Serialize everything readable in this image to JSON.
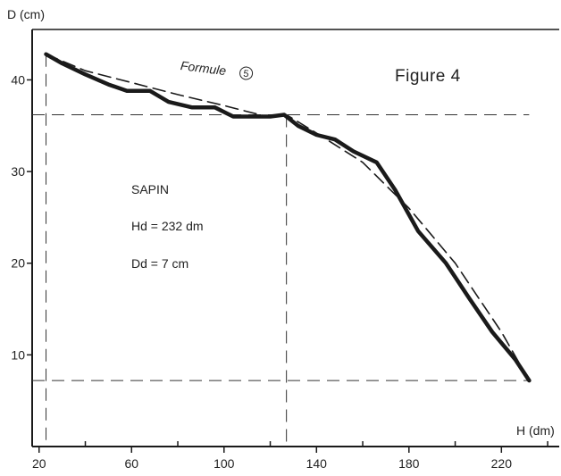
{
  "chart_data": {
    "type": "line",
    "title": "Figure 4",
    "xlabel": "H (dm)",
    "ylabel": "D (cm)",
    "xlim": [
      17,
      245
    ],
    "ylim": [
      0,
      45.5
    ],
    "x_ticks": [
      20,
      60,
      100,
      140,
      180,
      220
    ],
    "x_minor_ticks": [
      40,
      80,
      120,
      160,
      200,
      240
    ],
    "y_ticks": [
      10,
      20,
      30,
      40
    ],
    "grid": false,
    "annotations": {
      "species": "SAPIN",
      "hd": "Hd = 232 dm",
      "dd": "Dd = 7 cm",
      "formula": "Formule",
      "formula_number": "5"
    },
    "reference_lines": {
      "x": [
        23,
        127
      ],
      "y": [
        7.2,
        36.2
      ]
    },
    "series": [
      {
        "style": "thick-solid",
        "color": "#1a1a1a",
        "x": [
          23,
          30,
          40,
          50,
          58,
          68,
          76,
          86,
          96,
          104,
          112,
          120,
          126,
          132,
          140,
          148,
          156,
          166,
          174,
          184,
          196,
          206,
          216,
          226,
          232
        ],
        "y": [
          42.8,
          41.8,
          40.6,
          39.5,
          38.8,
          38.8,
          37.6,
          37.0,
          37.0,
          36.0,
          36.0,
          36.0,
          36.2,
          35.0,
          34.0,
          33.5,
          32.2,
          31.0,
          28.0,
          23.5,
          20.0,
          16.2,
          12.5,
          9.5,
          7.2
        ]
      },
      {
        "style": "dashed",
        "name": "Formule 5",
        "color": "#1a1a1a",
        "x": [
          23,
          40,
          60,
          80,
          100,
          120,
          127,
          140,
          160,
          180,
          200,
          220,
          232
        ],
        "y": [
          42.8,
          41.0,
          39.7,
          38.4,
          37.2,
          35.9,
          36.2,
          34.2,
          31.0,
          26.0,
          20.0,
          12.5,
          7.2
        ]
      }
    ]
  }
}
